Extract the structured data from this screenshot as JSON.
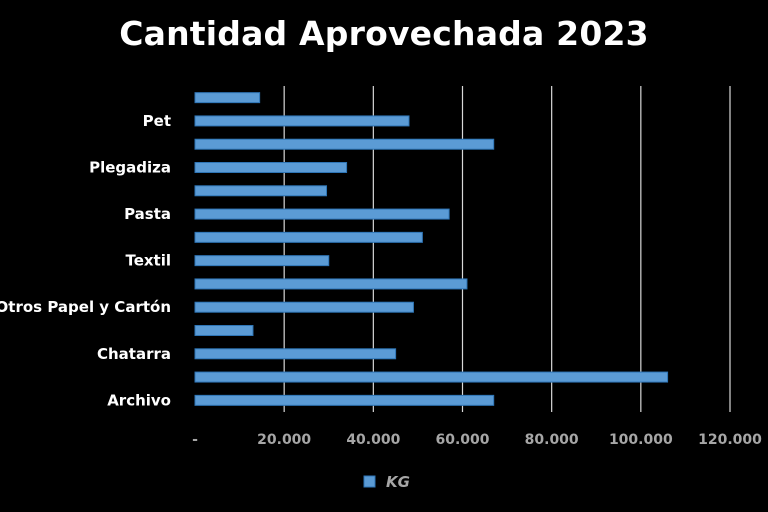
{
  "chart_data": {
    "type": "bar",
    "orientation": "horizontal",
    "title": "Cantidad Aprovechada 2023",
    "categories": [
      "Archivo",
      "",
      "Chatarra",
      "",
      "Otros Papel y Cartón",
      "",
      "Textil",
      "",
      "Pasta",
      "",
      "Plegadiza",
      "",
      "Pet",
      ""
    ],
    "series": [
      {
        "name": "KG",
        "color": "#5b9bd5",
        "values": [
          67000,
          106000,
          45000,
          13000,
          49000,
          61000,
          30000,
          51000,
          57000,
          29500,
          34000,
          67000,
          48000,
          14500
        ]
      }
    ],
    "xlim": [
      0,
      120000
    ],
    "x_ticks": [
      0,
      20000,
      40000,
      60000,
      80000,
      100000,
      120000
    ],
    "x_tick_labels": [
      "-",
      "20.000",
      "40.000",
      "60.000",
      "80.000",
      "100.000",
      "120.000"
    ],
    "grid": true,
    "legend_position": "bottom",
    "colors": {
      "background": "#000000",
      "bar": "#5b9bd5",
      "bar_edge": "#2e75b6",
      "grid": "#d9d9d9"
    }
  }
}
